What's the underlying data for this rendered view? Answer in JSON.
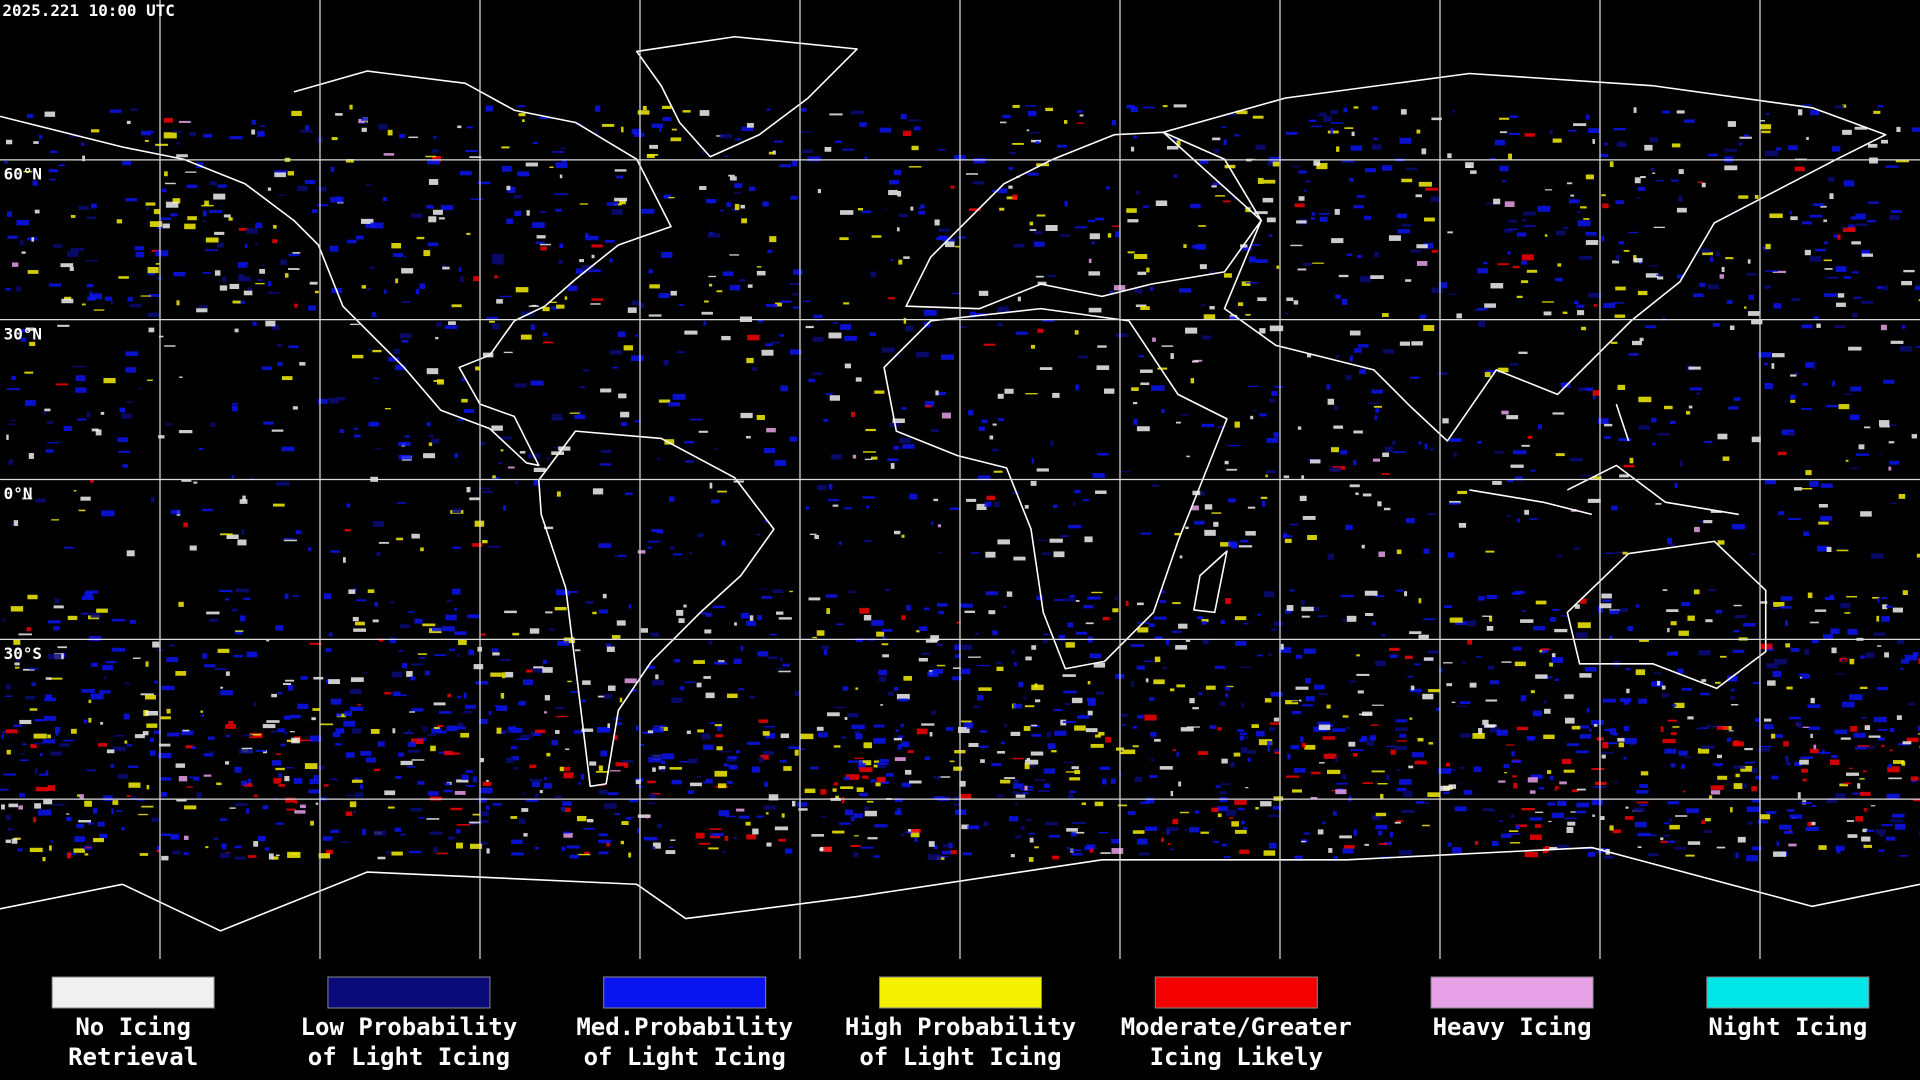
{
  "header": {
    "timestamp": "2025.221 10:00 UTC"
  },
  "map": {
    "latitude_labels": [
      "60°N",
      "30°N",
      "0°N",
      "30°S"
    ]
  },
  "legend": {
    "items": [
      {
        "lines": [
          "No Icing",
          "Retrieval"
        ],
        "color": "#f0f0f0"
      },
      {
        "lines": [
          "Low Probability",
          "of Light Icing"
        ],
        "color": "#0a0a78"
      },
      {
        "lines": [
          "Med.Probability",
          "of Light Icing"
        ],
        "color": "#0a14f0"
      },
      {
        "lines": [
          "High Probability",
          "of Light Icing"
        ],
        "color": "#f5f000"
      },
      {
        "lines": [
          "Moderate/Greater",
          "Icing Likely"
        ],
        "color": "#f50000"
      },
      {
        "lines": [
          "Heavy Icing"
        ],
        "color": "#e6a0e6"
      },
      {
        "lines": [
          "Night Icing"
        ],
        "color": "#00e6e6"
      }
    ]
  }
}
